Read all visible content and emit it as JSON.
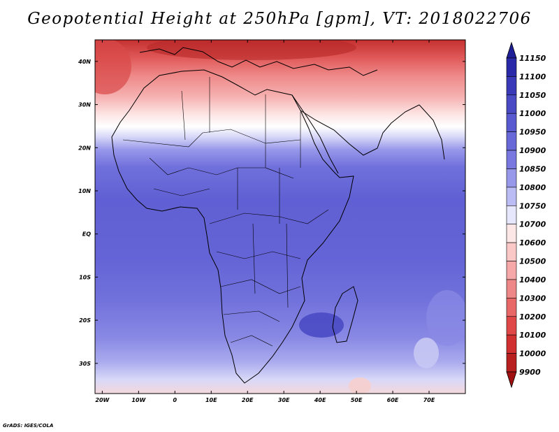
{
  "title": "Geopotential Height at 250hPa [gpm], VT: 2018022706",
  "credit": "GrADS: IGES/COLA",
  "map": {
    "lon_labels": [
      "20W",
      "10W",
      "0",
      "10E",
      "20E",
      "30E",
      "40E",
      "50E",
      "60E",
      "70E"
    ],
    "lat_labels": [
      "40N",
      "30N",
      "20N",
      "10N",
      "EQ",
      "10S",
      "20S",
      "30S"
    ],
    "lon_range": [
      -22,
      80
    ],
    "lat_range": [
      -37,
      45
    ]
  },
  "colorbar": {
    "labels": [
      "11150",
      "11100",
      "11050",
      "11000",
      "10950",
      "10900",
      "10850",
      "10800",
      "10750",
      "10700",
      "10600",
      "10500",
      "10400",
      "10300",
      "10200",
      "10100",
      "10000",
      "9900"
    ],
    "colors": [
      "#1e1e96",
      "#2a2aa8",
      "#3a3ab8",
      "#4a4ac4",
      "#5a5ad0",
      "#6868d8",
      "#7878e0",
      "#9898ea",
      "#bcbcf4",
      "#e6e6fc",
      "#fde6e6",
      "#fbc8c8",
      "#f6a8a8",
      "#ee8888",
      "#e86868",
      "#e04848",
      "#d03030",
      "#b82020",
      "#a01010"
    ]
  }
}
